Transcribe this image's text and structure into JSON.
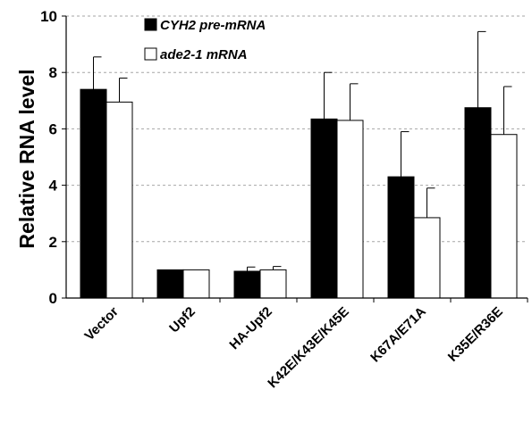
{
  "chart_data": {
    "type": "bar",
    "ylabel": "Relative RNA level",
    "xlabel": "",
    "ylim": [
      0,
      10
    ],
    "yticks": [
      0,
      2,
      4,
      6,
      8,
      10
    ],
    "grid": "horizontal-dashed",
    "legend_position": "top-left",
    "categories": [
      "Vector",
      "Upf2",
      "HA-Upf2",
      "K42E/K43E/K45E",
      "K67A/E71A",
      "K35E/R36E"
    ],
    "series": [
      {
        "name": "CYH2 pre-mRNA",
        "color": "#000000",
        "values": [
          7.4,
          1.0,
          0.95,
          6.35,
          4.3,
          6.75
        ],
        "errors": [
          1.15,
          0.0,
          0.15,
          1.65,
          1.6,
          2.7
        ]
      },
      {
        "name": "ade2-1 mRNA",
        "color": "#ffffff",
        "values": [
          6.95,
          1.0,
          1.0,
          6.3,
          2.85,
          5.8
        ],
        "errors": [
          0.85,
          0.0,
          0.12,
          1.3,
          1.05,
          1.7
        ]
      }
    ]
  }
}
